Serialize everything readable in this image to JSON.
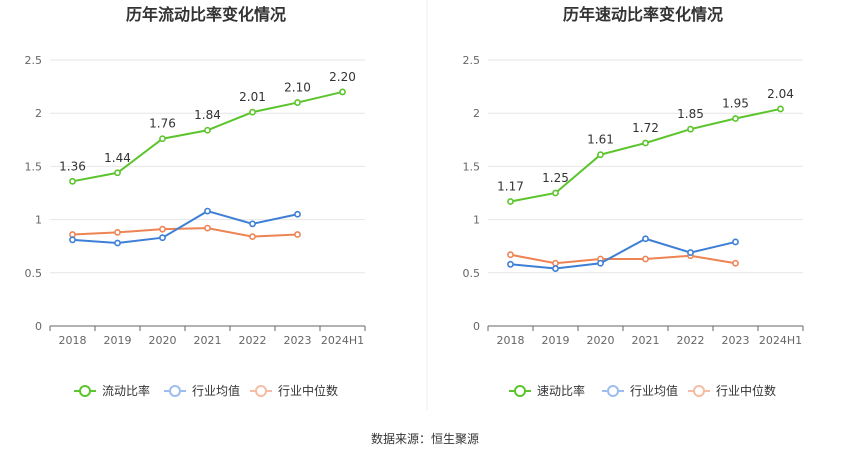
{
  "chart_data": [
    {
      "type": "line",
      "title": "历年流动比率变化情况",
      "categories": [
        "2018",
        "2019",
        "2020",
        "2021",
        "2022",
        "2023",
        "2024H1"
      ],
      "yticks": [
        "0",
        "0.5",
        "1",
        "1.5",
        "2",
        "2.5"
      ],
      "ylim": [
        0,
        2.5
      ],
      "grid": true,
      "legend_position": "bottom",
      "series": [
        {
          "name": "流动比率",
          "color": "#5cc42c",
          "values": [
            1.36,
            1.44,
            1.76,
            1.84,
            2.01,
            2.1,
            2.2
          ],
          "labels": [
            "1.36",
            "1.44",
            "1.76",
            "1.84",
            "2.01",
            "2.10",
            "2.20"
          ]
        },
        {
          "name": "行业均值",
          "color": "#3d7fd6",
          "values": [
            0.81,
            0.78,
            0.83,
            1.08,
            0.96,
            1.05,
            null
          ]
        },
        {
          "name": "行业中位数",
          "color": "#ee8354",
          "values": [
            0.86,
            0.88,
            0.91,
            0.92,
            0.84,
            0.86,
            null
          ]
        }
      ]
    },
    {
      "type": "line",
      "title": "历年速动比率变化情况",
      "categories": [
        "2018",
        "2019",
        "2020",
        "2021",
        "2022",
        "2023",
        "2024H1"
      ],
      "yticks": [
        "0",
        "0.5",
        "1",
        "1.5",
        "2",
        "2.5"
      ],
      "ylim": [
        0,
        2.5
      ],
      "grid": true,
      "legend_position": "bottom",
      "series": [
        {
          "name": "速动比率",
          "color": "#5cc42c",
          "values": [
            1.17,
            1.25,
            1.61,
            1.72,
            1.85,
            1.95,
            2.04
          ],
          "labels": [
            "1.17",
            "1.25",
            "1.61",
            "1.72",
            "1.85",
            "1.95",
            "2.04"
          ]
        },
        {
          "name": "行业均值",
          "color": "#3d7fd6",
          "values": [
            0.58,
            0.54,
            0.59,
            0.82,
            0.69,
            0.79,
            null
          ]
        },
        {
          "name": "行业中位数",
          "color": "#ee8354",
          "values": [
            0.67,
            0.59,
            0.63,
            0.63,
            0.66,
            0.59,
            null
          ]
        }
      ]
    }
  ],
  "source_text": "数据来源：恒生聚源"
}
